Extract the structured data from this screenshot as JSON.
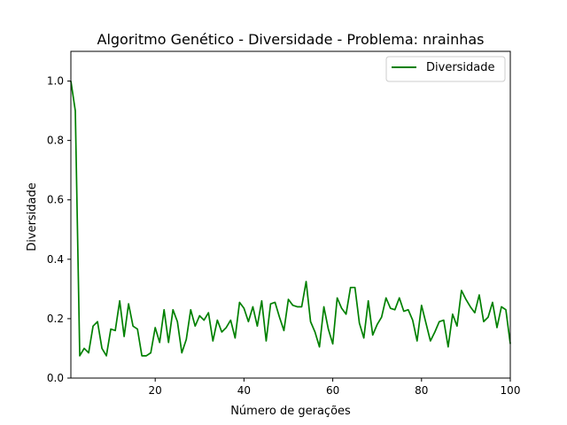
{
  "chart_data": {
    "type": "line",
    "title": "Algoritmo Genético - Diversidade - Problema: nrainhas",
    "xlabel": "Número de gerações",
    "ylabel": "Diversidade",
    "xlim": [
      1,
      100
    ],
    "ylim": [
      0,
      1.1
    ],
    "x_ticks": [
      20,
      40,
      60,
      80,
      100
    ],
    "y_ticks": [
      0.0,
      0.2,
      0.4,
      0.6,
      0.8,
      1.0
    ],
    "x_tick_labels": [
      "20",
      "40",
      "60",
      "80",
      "100"
    ],
    "y_tick_labels": [
      "0.0",
      "0.2",
      "0.4",
      "0.6",
      "0.8",
      "1.0"
    ],
    "grid": false,
    "legend_position": "top-right",
    "series": [
      {
        "name": "Diversidade",
        "color": "#008000",
        "x": [
          1,
          2,
          3,
          4,
          5,
          6,
          7,
          8,
          9,
          10,
          11,
          12,
          13,
          14,
          15,
          16,
          17,
          18,
          19,
          20,
          21,
          22,
          23,
          24,
          25,
          26,
          27,
          28,
          29,
          30,
          31,
          32,
          33,
          34,
          35,
          36,
          37,
          38,
          39,
          40,
          41,
          42,
          43,
          44,
          45,
          46,
          47,
          48,
          49,
          50,
          51,
          52,
          53,
          54,
          55,
          56,
          57,
          58,
          59,
          60,
          61,
          62,
          63,
          64,
          65,
          66,
          67,
          68,
          69,
          70,
          71,
          72,
          73,
          74,
          75,
          76,
          77,
          78,
          79,
          80,
          81,
          82,
          83,
          84,
          85,
          86,
          87,
          88,
          89,
          90,
          91,
          92,
          93,
          94,
          95,
          96,
          97,
          98,
          99,
          100
        ],
        "values": [
          1.0,
          0.9,
          0.075,
          0.1,
          0.085,
          0.175,
          0.19,
          0.1,
          0.075,
          0.165,
          0.16,
          0.26,
          0.14,
          0.25,
          0.175,
          0.165,
          0.075,
          0.075,
          0.085,
          0.17,
          0.12,
          0.23,
          0.12,
          0.23,
          0.19,
          0.085,
          0.13,
          0.23,
          0.175,
          0.21,
          0.195,
          0.22,
          0.125,
          0.195,
          0.155,
          0.17,
          0.195,
          0.135,
          0.255,
          0.235,
          0.19,
          0.24,
          0.175,
          0.26,
          0.125,
          0.25,
          0.255,
          0.205,
          0.16,
          0.265,
          0.245,
          0.24,
          0.24,
          0.325,
          0.19,
          0.155,
          0.105,
          0.24,
          0.165,
          0.115,
          0.27,
          0.235,
          0.215,
          0.305,
          0.305,
          0.185,
          0.135,
          0.26,
          0.145,
          0.18,
          0.205,
          0.27,
          0.235,
          0.23,
          0.27,
          0.225,
          0.23,
          0.195,
          0.125,
          0.245,
          0.185,
          0.125,
          0.155,
          0.19,
          0.195,
          0.105,
          0.215,
          0.175,
          0.295,
          0.265,
          0.24,
          0.22,
          0.28,
          0.19,
          0.205,
          0.255,
          0.17,
          0.24,
          0.23,
          0.115
        ]
      }
    ]
  }
}
